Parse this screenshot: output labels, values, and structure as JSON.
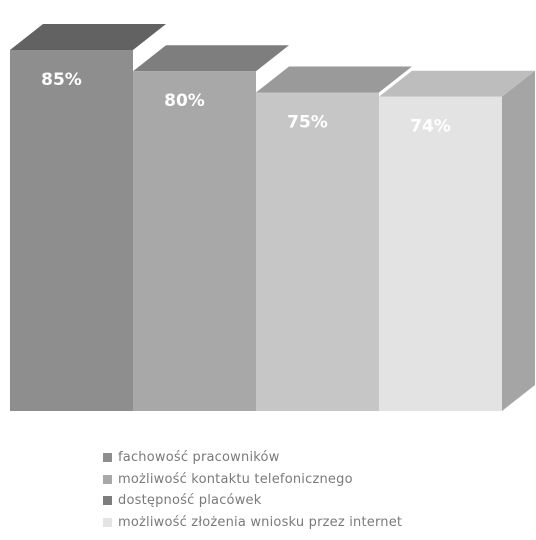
{
  "chart_data": {
    "type": "bar",
    "categories": [
      "fachowość pracowników",
      "możliwość kontaktu telefonicznego",
      "dostępność placówek",
      "możliwość złożenia wniosku przez internet"
    ],
    "values": [
      85,
      80,
      75,
      74
    ],
    "value_labels": [
      "85%",
      "80%",
      "75%",
      "74%"
    ],
    "title": "",
    "xlabel": "",
    "ylabel": "",
    "ylim": [
      0,
      85
    ],
    "grid": false,
    "legend_position": "bottom",
    "style": "3d",
    "colors": {
      "front": [
        "#8e8e8e",
        "#a8a8a8",
        "#c6c6c6",
        "#e3e3e3"
      ],
      "top": [
        "#626262",
        "#7e7e7e",
        "#9a9a9a",
        "#bdbdbd"
      ],
      "side": [
        "#6a6a6a",
        "#868686",
        "#a2a2a2",
        "#a5a5a5"
      ],
      "label": [
        "#ffffff",
        "#ffffff",
        "#ffffff",
        "#ffffff"
      ],
      "swatch": [
        "#8e8e8e",
        "#a8a8a8",
        "#7d7d7d",
        "#e3e3e3"
      ]
    }
  }
}
